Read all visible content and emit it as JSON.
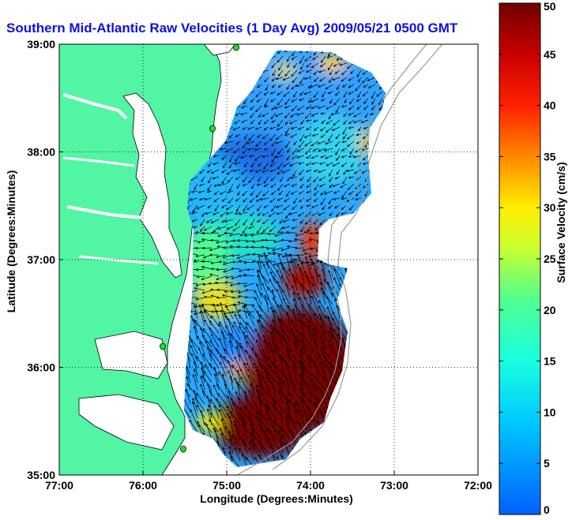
{
  "title": "Southern Mid-Atlantic Raw Velocities (1 Day Avg) 2009/05/21 0500 GMT",
  "xlabel": "Longitude (Degrees:Minutes)",
  "ylabel": "Latitude (Degrees:Minutes)",
  "colorbar_label": "Surface Velocity (cm/s)",
  "x_ticks": [
    {
      "value": -77,
      "label": "77:00"
    },
    {
      "value": -76,
      "label": "76:00"
    },
    {
      "value": -75,
      "label": "75:00"
    },
    {
      "value": -74,
      "label": "74:00"
    },
    {
      "value": -73,
      "label": "73:00"
    },
    {
      "value": -72,
      "label": "72:00"
    }
  ],
  "y_ticks": [
    {
      "value": 35,
      "label": "35:00"
    },
    {
      "value": 36,
      "label": "36:00"
    },
    {
      "value": 37,
      "label": "37:00"
    },
    {
      "value": 38,
      "label": "38:00"
    },
    {
      "value": 39,
      "label": "39:00"
    }
  ],
  "colorbar_ticks": [
    "0",
    "5",
    "10",
    "15",
    "20",
    "25",
    "30",
    "35",
    "40",
    "45",
    "50"
  ],
  "map": {
    "lon_range": [
      -77,
      -72
    ],
    "lat_range": [
      35,
      39
    ],
    "colorbar_range": [
      0,
      50
    ],
    "colors": {
      "land": "#52f5a4",
      "water": "#ffffff",
      "velocity_high": "#7a0000",
      "velocity_low": "#0050ff",
      "arrows": "#000000",
      "stations": "#22dd22",
      "bathymetry": "#999999"
    }
  }
}
